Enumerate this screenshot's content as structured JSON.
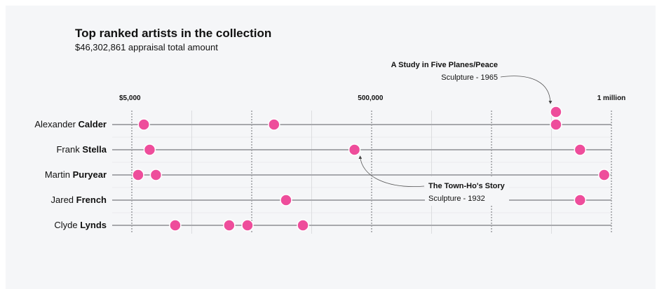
{
  "chart_data": {
    "type": "scatter",
    "title": "Top ranked artists in the collection",
    "subtitle": "$46,302,861 appraisal total amount",
    "colors": {
      "point": "#ee4d9b",
      "track": "#a7a8ac",
      "major_grid": "#6f7074",
      "minor_grid": "#dcdde0",
      "background": "#f5f6f8"
    },
    "tick_labels": [
      {
        "value": 5000,
        "label": "$5,000"
      },
      {
        "value": 500000,
        "label": "500,000"
      },
      {
        "value": 1000000,
        "label": "1 million"
      }
    ],
    "xlim": [
      5000,
      1000000
    ],
    "grid": true,
    "artists": [
      {
        "first": "Alexander",
        "last": "Calder",
        "values": [
          30000,
          300000,
          885000,
          885000
        ]
      },
      {
        "first": "Frank",
        "last": "Stella",
        "values": [
          42000,
          467000,
          935000
        ]
      },
      {
        "first": "Martin",
        "last": "Puryear",
        "values": [
          18000,
          55000,
          985000
        ]
      },
      {
        "first": "Jared",
        "last": "French",
        "values": [
          325000,
          935000
        ]
      },
      {
        "first": "Clyde",
        "last": "Lynds",
        "values": [
          95000,
          207000,
          245000,
          360000
        ]
      }
    ],
    "annotations": [
      {
        "title": "A Study in Five Planes/Peace",
        "subtitle": "Sculpture - 1965",
        "artist_index": 0,
        "point_index": 3,
        "stacked": true
      },
      {
        "title": "The Town-Ho's Story",
        "subtitle": "Sculpture - 1932",
        "artist_index": 1,
        "point_index": 1
      }
    ]
  }
}
